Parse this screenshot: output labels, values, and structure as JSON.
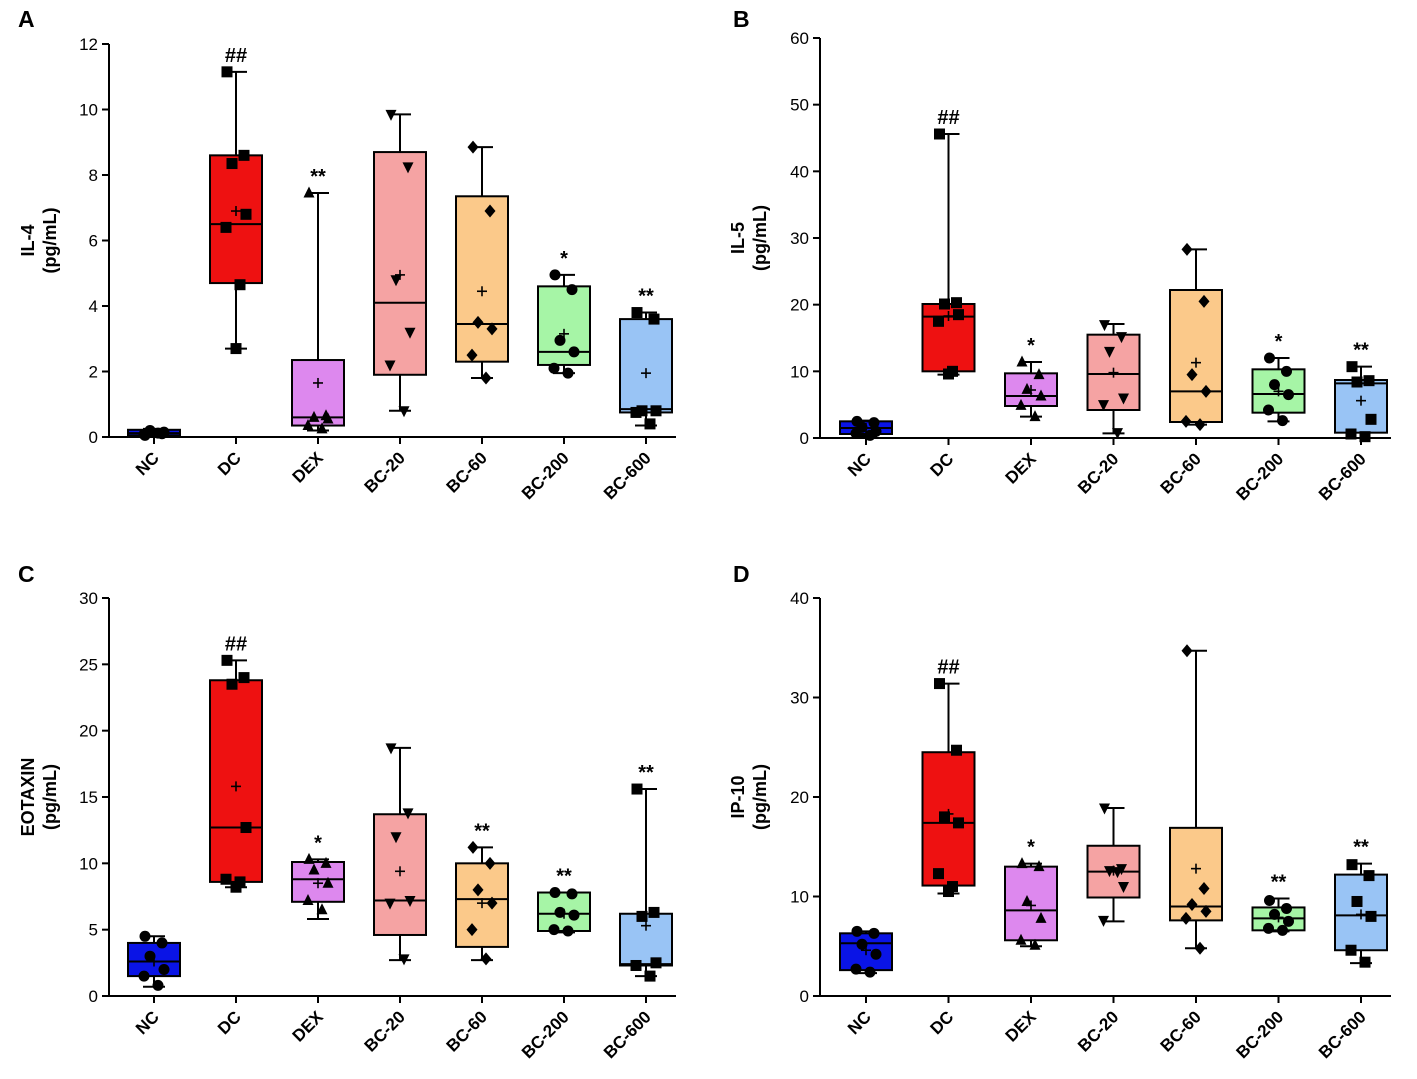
{
  "chart_data": [
    {
      "panel_label": "A",
      "type": "box",
      "ylabel_line1": "IL-4",
      "ylabel_line2": "(pg/mL)",
      "ylim": [
        0,
        12
      ],
      "yticks": [
        0,
        2,
        4,
        6,
        8,
        10,
        12
      ],
      "yticklabels": [
        "0",
        "2",
        "4",
        "6",
        "8",
        "10",
        "12"
      ],
      "categories": [
        "NC",
        "DC",
        "DEX",
        "BC-20",
        "BC-60",
        "BC-200",
        "BC-600"
      ],
      "groups": [
        {
          "name": "NC",
          "color": "#0a14e6",
          "marker": "circle",
          "min": 0.02,
          "q1": 0.05,
          "median": 0.12,
          "q3": 0.22,
          "max": 0.25,
          "mean": 0.12,
          "points": [
            0.05,
            0.1,
            0.2,
            0.15,
            0.08,
            0.12
          ],
          "sig": ""
        },
        {
          "name": "DC",
          "color": "#ee1111",
          "marker": "square",
          "min": 2.7,
          "q1": 4.7,
          "median": 6.5,
          "q3": 8.6,
          "max": 11.15,
          "mean": 6.9,
          "points": [
            11.15,
            8.6,
            8.35,
            6.8,
            6.4,
            4.65,
            2.7
          ],
          "sig": "##"
        },
        {
          "name": "DEX",
          "color": "#dd88ee",
          "marker": "triangle",
          "min": 0.2,
          "q1": 0.35,
          "median": 0.6,
          "q3": 2.35,
          "max": 7.45,
          "mean": 1.65,
          "points": [
            7.45,
            0.65,
            0.6,
            0.55,
            0.35,
            0.25
          ],
          "sig": "**"
        },
        {
          "name": "BC-20",
          "color": "#f5a3a3",
          "marker": "tri-down",
          "min": 0.8,
          "q1": 1.9,
          "median": 4.1,
          "q3": 8.7,
          "max": 9.85,
          "mean": 4.95,
          "points": [
            9.85,
            8.25,
            4.8,
            3.2,
            2.2,
            0.8
          ],
          "sig": ""
        },
        {
          "name": "BC-60",
          "color": "#fbc98a",
          "marker": "diamond",
          "min": 1.8,
          "q1": 2.3,
          "median": 3.45,
          "q3": 7.35,
          "max": 8.85,
          "mean": 4.45,
          "points": [
            8.85,
            6.9,
            3.5,
            3.3,
            2.5,
            1.8
          ],
          "sig": ""
        },
        {
          "name": "BC-200",
          "color": "#a6f5a6",
          "marker": "circle",
          "min": 1.95,
          "q1": 2.2,
          "median": 2.6,
          "q3": 4.6,
          "max": 4.95,
          "mean": 3.15,
          "points": [
            4.95,
            4.5,
            2.95,
            2.6,
            2.1,
            1.95
          ],
          "sig": "*"
        },
        {
          "name": "BC-600",
          "color": "#99c4f5",
          "marker": "square",
          "min": 0.35,
          "q1": 0.75,
          "median": 0.85,
          "q3": 3.6,
          "max": 3.8,
          "mean": 1.95,
          "points": [
            3.8,
            3.6,
            0.8,
            0.8,
            0.75,
            0.4
          ],
          "sig": "**"
        }
      ]
    },
    {
      "panel_label": "B",
      "type": "box",
      "ylabel_line1": "IL-5",
      "ylabel_line2": "(pg/mL)",
      "ylim": [
        0,
        60
      ],
      "yticks": [
        0,
        10,
        20,
        30,
        40,
        50,
        60
      ],
      "yticklabels": [
        "0",
        "10",
        "20",
        "30",
        "40",
        "50",
        "60"
      ],
      "categories": [
        "NC",
        "DC",
        "DEX",
        "BC-20",
        "BC-60",
        "BC-200",
        "BC-600"
      ],
      "groups": [
        {
          "name": "NC",
          "color": "#0a14e6",
          "marker": "circle",
          "min": 0.3,
          "q1": 0.6,
          "median": 1.5,
          "q3": 2.5,
          "max": 2.6,
          "mean": 1.5,
          "points": [
            2.5,
            2.3,
            1.6,
            1.0,
            0.7,
            0.4
          ],
          "sig": ""
        },
        {
          "name": "DC",
          "color": "#ee1111",
          "marker": "square",
          "min": 9.5,
          "q1": 10.0,
          "median": 18.2,
          "q3": 20.1,
          "max": 45.6,
          "mean": 18.3,
          "points": [
            45.6,
            20.3,
            20.1,
            18.5,
            17.5,
            10.0,
            9.6
          ],
          "sig": "##"
        },
        {
          "name": "DEX",
          "color": "#dd88ee",
          "marker": "triangle",
          "min": 3.2,
          "q1": 4.8,
          "median": 6.3,
          "q3": 9.7,
          "max": 11.4,
          "mean": 7.2,
          "points": [
            11.4,
            9.5,
            7.3,
            6.3,
            4.9,
            3.2
          ],
          "sig": "*"
        },
        {
          "name": "BC-20",
          "color": "#f5a3a3",
          "marker": "tri-down",
          "min": 0.7,
          "q1": 4.2,
          "median": 9.6,
          "q3": 15.5,
          "max": 17.1,
          "mean": 9.8,
          "points": [
            17.0,
            15.2,
            13.0,
            6.0,
            5.0,
            0.8
          ],
          "sig": ""
        },
        {
          "name": "BC-60",
          "color": "#fbc98a",
          "marker": "diamond",
          "min": 2.0,
          "q1": 2.4,
          "median": 7.0,
          "q3": 22.2,
          "max": 28.3,
          "mean": 11.3,
          "points": [
            28.3,
            20.5,
            9.5,
            7.0,
            2.5,
            2.0
          ],
          "sig": ""
        },
        {
          "name": "BC-200",
          "color": "#a6f5a6",
          "marker": "circle",
          "min": 2.5,
          "q1": 3.8,
          "median": 6.6,
          "q3": 10.3,
          "max": 12.0,
          "mean": 7.0,
          "points": [
            12.0,
            10.0,
            8.0,
            6.5,
            4.2,
            2.6
          ],
          "sig": "*"
        },
        {
          "name": "BC-600",
          "color": "#99c4f5",
          "marker": "square",
          "min": 0.0,
          "q1": 0.8,
          "median": 8.2,
          "q3": 8.7,
          "max": 10.7,
          "mean": 5.6,
          "points": [
            10.7,
            8.6,
            8.4,
            2.8,
            0.6,
            0.2
          ],
          "sig": "**"
        }
      ]
    },
    {
      "panel_label": "C",
      "type": "box",
      "ylabel_line1": "EOTAXIN",
      "ylabel_line2": "(pg/mL)",
      "ylim": [
        0,
        30
      ],
      "yticks": [
        0,
        5,
        10,
        15,
        20,
        25,
        30
      ],
      "yticklabels": [
        "0",
        "5",
        "10",
        "15",
        "20",
        "25",
        "30"
      ],
      "categories": [
        "NC",
        "DC",
        "DEX",
        "BC-20",
        "BC-60",
        "BC-200",
        "BC-600"
      ],
      "groups": [
        {
          "name": "NC",
          "color": "#0a14e6",
          "marker": "circle",
          "min": 0.7,
          "q1": 1.5,
          "median": 2.6,
          "q3": 4.0,
          "max": 4.5,
          "mean": 2.6,
          "points": [
            4.5,
            4.0,
            3.0,
            2.0,
            1.5,
            0.8
          ],
          "sig": ""
        },
        {
          "name": "DC",
          "color": "#ee1111",
          "marker": "square",
          "min": 8.2,
          "q1": 8.6,
          "median": 12.7,
          "q3": 23.8,
          "max": 25.3,
          "mean": 15.8,
          "points": [
            25.3,
            24.0,
            23.5,
            12.7,
            8.8,
            8.6,
            8.2
          ],
          "sig": "##"
        },
        {
          "name": "DEX",
          "color": "#dd88ee",
          "marker": "triangle",
          "min": 5.8,
          "q1": 7.1,
          "median": 8.8,
          "q3": 10.1,
          "max": 10.3,
          "mean": 8.5,
          "points": [
            10.3,
            10.0,
            9.5,
            8.5,
            7.2,
            6.5
          ],
          "sig": "*"
        },
        {
          "name": "BC-20",
          "color": "#f5a3a3",
          "marker": "tri-down",
          "min": 2.7,
          "q1": 4.6,
          "median": 7.2,
          "q3": 13.7,
          "max": 18.7,
          "mean": 9.4,
          "points": [
            18.7,
            13.8,
            12.0,
            7.2,
            7.0,
            2.8
          ],
          "sig": ""
        },
        {
          "name": "BC-60",
          "color": "#fbc98a",
          "marker": "diamond",
          "min": 2.7,
          "q1": 3.7,
          "median": 7.3,
          "q3": 10.0,
          "max": 11.2,
          "mean": 7.0,
          "points": [
            11.2,
            10.0,
            8.0,
            7.0,
            5.0,
            2.8
          ],
          "sig": "**"
        },
        {
          "name": "BC-200",
          "color": "#a6f5a6",
          "marker": "circle",
          "min": 4.8,
          "q1": 4.9,
          "median": 6.2,
          "q3": 7.8,
          "max": 7.8,
          "mean": 6.2,
          "points": [
            7.8,
            7.7,
            6.3,
            6.1,
            5.0,
            4.9
          ],
          "sig": "**"
        },
        {
          "name": "BC-600",
          "color": "#99c4f5",
          "marker": "square",
          "min": 1.5,
          "q1": 2.3,
          "median": 2.4,
          "q3": 6.2,
          "max": 15.6,
          "mean": 5.3,
          "points": [
            15.6,
            6.3,
            6.0,
            2.5,
            2.3,
            1.5
          ],
          "sig": "**"
        }
      ]
    },
    {
      "panel_label": "D",
      "type": "box",
      "ylabel_line1": "IP-10",
      "ylabel_line2": "(pg/mL)",
      "ylim": [
        0,
        40
      ],
      "yticks": [
        0,
        10,
        20,
        30,
        40
      ],
      "yticklabels": [
        "0",
        "10",
        "20",
        "30",
        "40"
      ],
      "categories": [
        "NC",
        "DC",
        "DEX",
        "BC-20",
        "BC-60",
        "BC-200",
        "BC-600"
      ],
      "groups": [
        {
          "name": "NC",
          "color": "#0a14e6",
          "marker": "circle",
          "min": 2.3,
          "q1": 2.6,
          "median": 5.3,
          "q3": 6.3,
          "max": 6.5,
          "mean": 4.6,
          "points": [
            6.5,
            6.3,
            5.2,
            4.2,
            2.7,
            2.4
          ],
          "sig": ""
        },
        {
          "name": "DC",
          "color": "#ee1111",
          "marker": "square",
          "min": 10.3,
          "q1": 11.1,
          "median": 17.4,
          "q3": 24.5,
          "max": 31.4,
          "mean": 18.3,
          "points": [
            31.4,
            24.7,
            18.0,
            17.4,
            12.3,
            11.0,
            10.5
          ],
          "sig": "##"
        },
        {
          "name": "DEX",
          "color": "#dd88ee",
          "marker": "triangle",
          "min": 5.0,
          "q1": 5.6,
          "median": 8.6,
          "q3": 13.0,
          "max": 13.3,
          "mean": 9.1,
          "points": [
            13.3,
            13.0,
            9.5,
            7.8,
            5.6,
            5.1
          ],
          "sig": "*"
        },
        {
          "name": "BC-20",
          "color": "#f5a3a3",
          "marker": "tri-down",
          "min": 7.5,
          "q1": 9.9,
          "median": 12.5,
          "q3": 15.1,
          "max": 18.9,
          "mean": 12.6,
          "points": [
            18.9,
            12.8,
            12.6,
            11.0,
            7.6,
            12.5
          ],
          "sig": ""
        },
        {
          "name": "BC-60",
          "color": "#fbc98a",
          "marker": "diamond",
          "min": 4.8,
          "q1": 7.6,
          "median": 9.0,
          "q3": 16.9,
          "max": 34.7,
          "mean": 12.8,
          "points": [
            34.7,
            10.8,
            9.2,
            8.5,
            7.8,
            4.8
          ],
          "sig": ""
        },
        {
          "name": "BC-200",
          "color": "#a6f5a6",
          "marker": "circle",
          "min": 6.5,
          "q1": 6.6,
          "median": 7.8,
          "q3": 8.9,
          "max": 9.8,
          "mean": 7.9,
          "points": [
            9.6,
            8.8,
            8.2,
            7.5,
            6.8,
            6.6
          ],
          "sig": "**"
        },
        {
          "name": "BC-600",
          "color": "#99c4f5",
          "marker": "square",
          "min": 3.3,
          "q1": 4.6,
          "median": 8.1,
          "q3": 12.2,
          "max": 13.3,
          "mean": 8.2,
          "points": [
            13.2,
            12.1,
            9.5,
            8.0,
            4.6,
            3.4
          ],
          "sig": "**"
        }
      ]
    }
  ]
}
